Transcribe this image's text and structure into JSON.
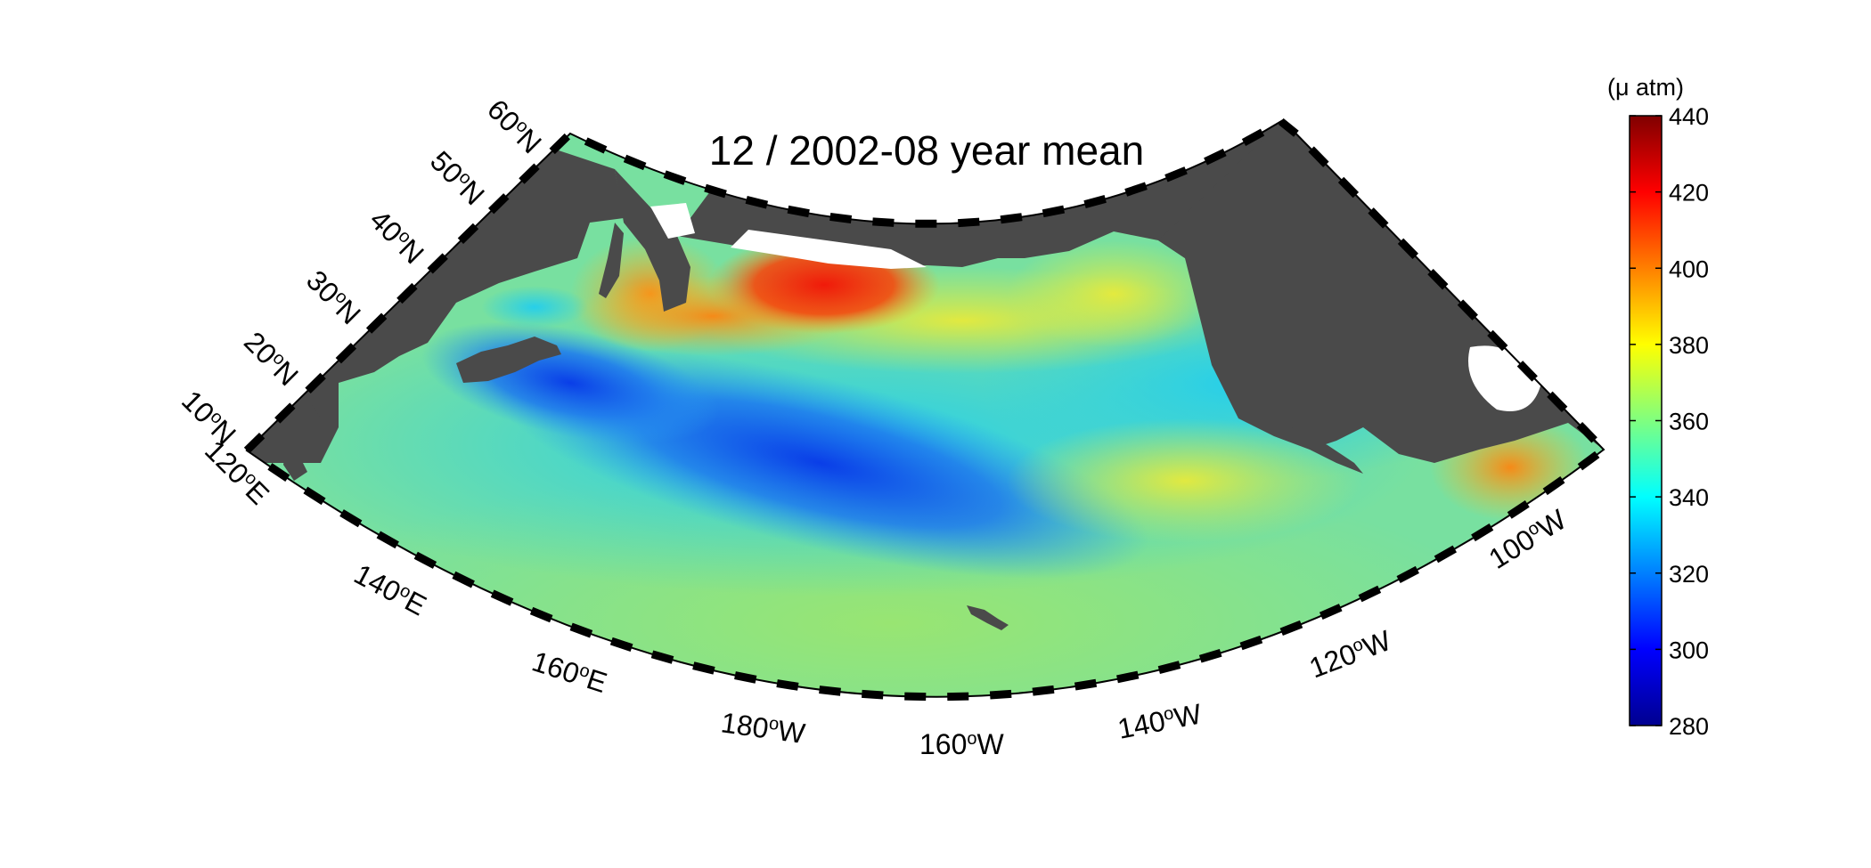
{
  "title": "12 / 2002-08 year mean",
  "map": {
    "projection": "conic",
    "region": "North Pacific",
    "land_color": "#4a4a4a",
    "latitude_labels": [
      {
        "text": "60°N",
        "deg": "60",
        "hem": "N"
      },
      {
        "text": "50°N",
        "deg": "50",
        "hem": "N"
      },
      {
        "text": "40°N",
        "deg": "40",
        "hem": "N"
      },
      {
        "text": "30°N",
        "deg": "30",
        "hem": "N"
      },
      {
        "text": "20°N",
        "deg": "20",
        "hem": "N"
      },
      {
        "text": "10°N",
        "deg": "10",
        "hem": "N"
      }
    ],
    "longitude_labels": [
      {
        "text": "120°E",
        "deg": "120",
        "hem": "E"
      },
      {
        "text": "140°E",
        "deg": "140",
        "hem": "E"
      },
      {
        "text": "160°E",
        "deg": "160",
        "hem": "E"
      },
      {
        "text": "180°W",
        "deg": "180",
        "hem": "W"
      },
      {
        "text": "160°W",
        "deg": "160",
        "hem": "W"
      },
      {
        "text": "140°W",
        "deg": "140",
        "hem": "W"
      },
      {
        "text": "120°W",
        "deg": "120",
        "hem": "W"
      },
      {
        "text": "100°W",
        "deg": "100",
        "hem": "W"
      }
    ]
  },
  "colorbar": {
    "unit": "(μ atm)",
    "min": 280,
    "max": 440,
    "ticks": [
      "280",
      "300",
      "320",
      "340",
      "360",
      "380",
      "400",
      "420",
      "440"
    ],
    "colormap": "jet"
  }
}
